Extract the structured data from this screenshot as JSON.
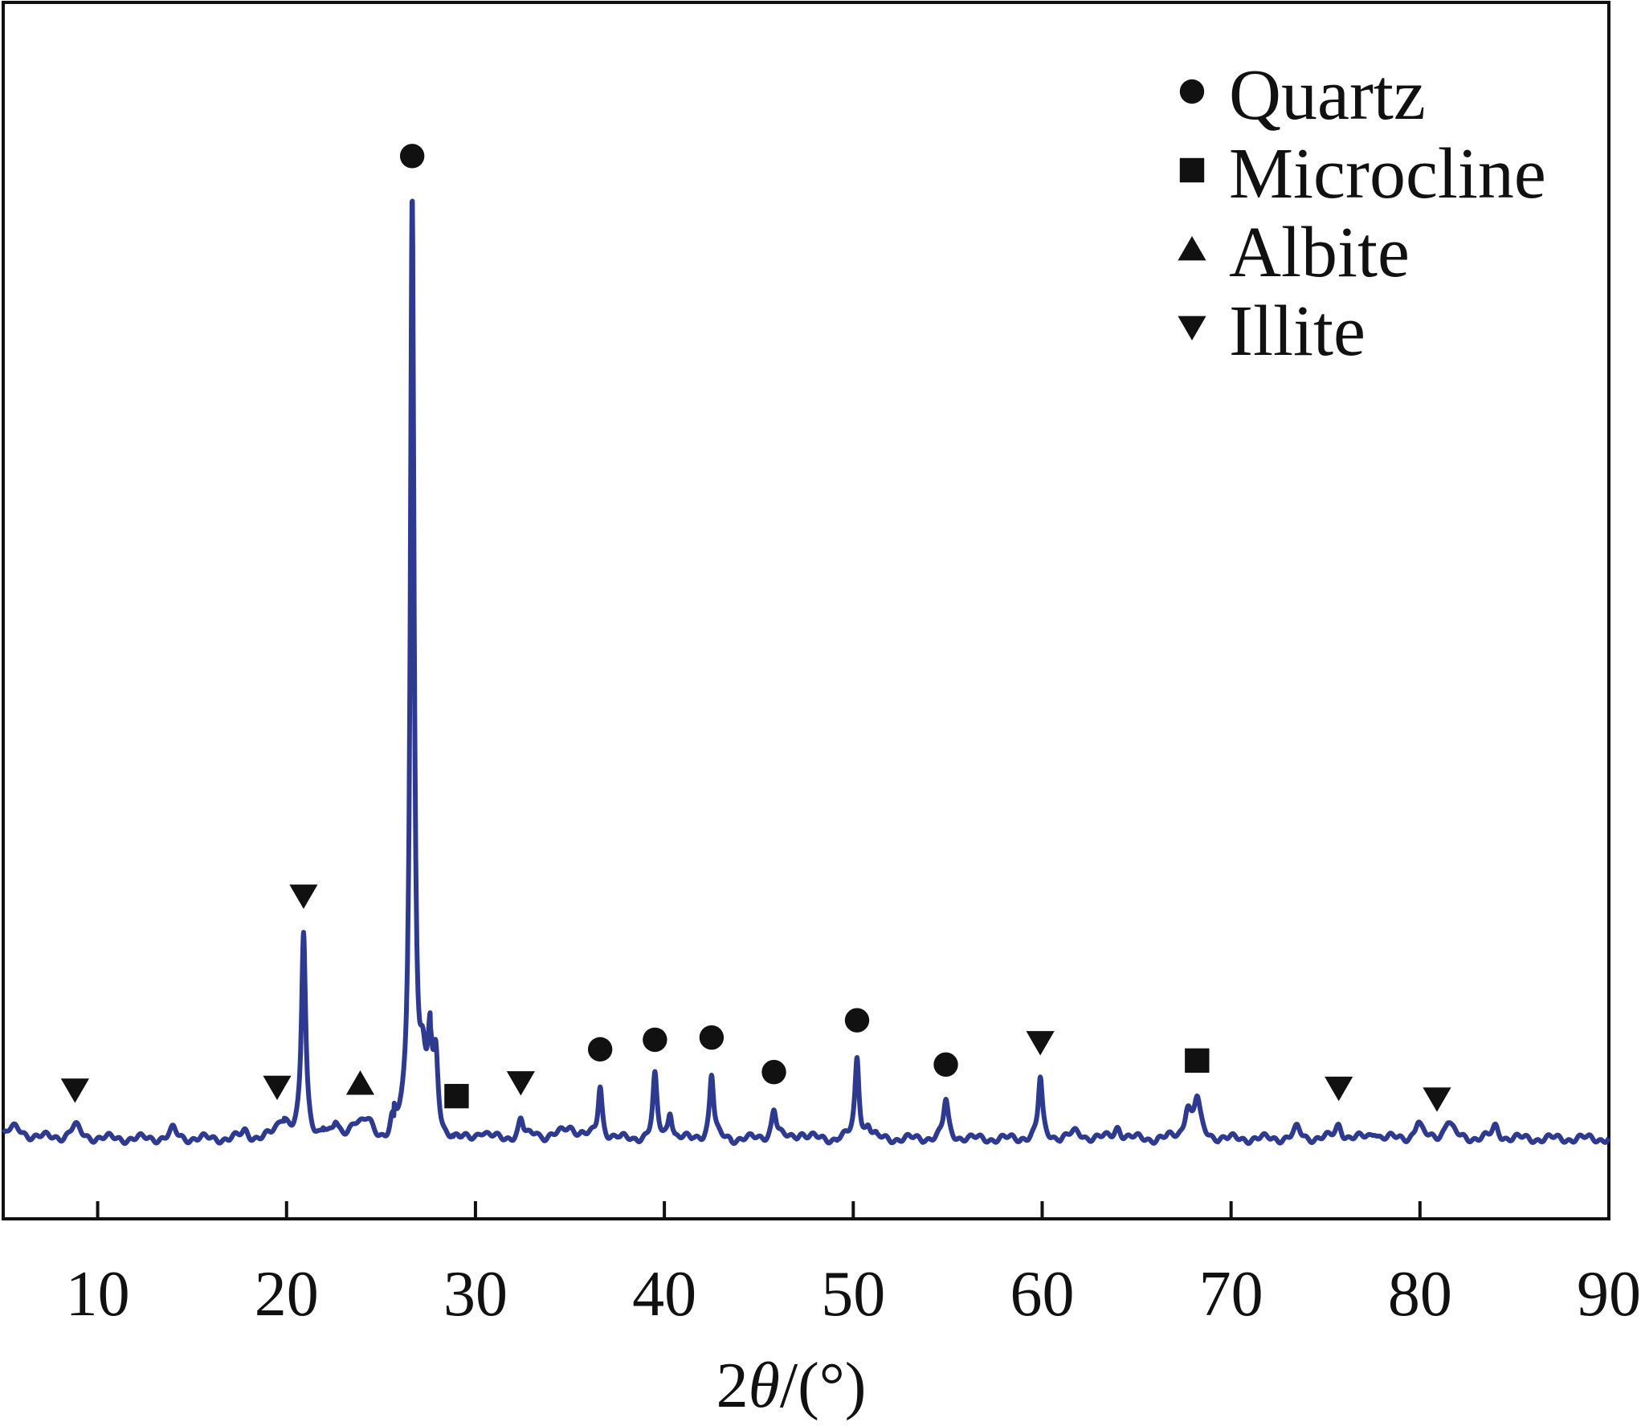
{
  "chart_data": {
    "type": "line",
    "title": "",
    "xlabel": "2θ/(°)",
    "xlabel_parts": {
      "prefix": "2",
      "symbol": "θ",
      "suffix": "/(°)"
    },
    "ylabel": "",
    "xlim": [
      5,
      90
    ],
    "ylim": [
      0,
      1000
    ],
    "xticks": [
      10,
      20,
      30,
      40,
      50,
      60,
      70,
      80,
      90
    ],
    "yticks_shown": false,
    "grid": false,
    "line_color": "#2e3a8f",
    "legend_position": "top-right",
    "legend": [
      {
        "symbol": "circle",
        "label": "Quartz"
      },
      {
        "symbol": "square",
        "label": "Microcline"
      },
      {
        "symbol": "triangle-up",
        "label": "Albite"
      },
      {
        "symbol": "triangle-down",
        "label": "Illite"
      }
    ],
    "series": [
      {
        "peaks": [
          {
            "x": 5.6,
            "h": 10,
            "w": 0.6
          },
          {
            "x": 8.8,
            "h": 12,
            "w": 0.3
          },
          {
            "x": 14.0,
            "h": 9,
            "w": 0.2
          },
          {
            "x": 17.8,
            "h": 7,
            "w": 0.2
          },
          {
            "x": 19.8,
            "h": 22,
            "w": 0.35
          },
          {
            "x": 20.9,
            "h": 205,
            "w": 0.13
          },
          {
            "x": 22.0,
            "h": 10,
            "w": 0.15
          },
          {
            "x": 22.6,
            "h": 12,
            "w": 0.15
          },
          {
            "x": 23.6,
            "h": 15,
            "w": 0.4
          },
          {
            "x": 24.3,
            "h": 15,
            "w": 0.35
          },
          {
            "x": 25.6,
            "h": 22,
            "w": 0.15
          },
          {
            "x": 26.65,
            "h": 945,
            "w": 0.12
          },
          {
            "x": 27.2,
            "h": 55,
            "w": 0.2
          },
          {
            "x": 27.6,
            "h": 85,
            "w": 0.15
          },
          {
            "x": 27.9,
            "h": 75,
            "w": 0.15
          },
          {
            "x": 30.3,
            "h": 8,
            "w": 0.3
          },
          {
            "x": 32.4,
            "h": 18,
            "w": 0.15
          },
          {
            "x": 33.2,
            "h": 6,
            "w": 0.2
          },
          {
            "x": 35.0,
            "h": 12,
            "w": 0.5
          },
          {
            "x": 36.6,
            "h": 52,
            "w": 0.13
          },
          {
            "x": 39.5,
            "h": 62,
            "w": 0.13
          },
          {
            "x": 40.3,
            "h": 28,
            "w": 0.13
          },
          {
            "x": 42.5,
            "h": 65,
            "w": 0.13
          },
          {
            "x": 45.8,
            "h": 30,
            "w": 0.15
          },
          {
            "x": 47.2,
            "h": 6,
            "w": 0.3
          },
          {
            "x": 50.2,
            "h": 82,
            "w": 0.13
          },
          {
            "x": 50.8,
            "h": 12,
            "w": 0.15
          },
          {
            "x": 54.9,
            "h": 38,
            "w": 0.15
          },
          {
            "x": 59.9,
            "h": 60,
            "w": 0.13
          },
          {
            "x": 61.8,
            "h": 6,
            "w": 0.4
          },
          {
            "x": 64.0,
            "h": 12,
            "w": 0.2
          },
          {
            "x": 67.7,
            "h": 30,
            "w": 0.2
          },
          {
            "x": 68.2,
            "h": 38,
            "w": 0.2
          },
          {
            "x": 73.5,
            "h": 10,
            "w": 0.2
          },
          {
            "x": 75.7,
            "h": 14,
            "w": 0.2
          },
          {
            "x": 77.6,
            "h": 8,
            "w": 0.2
          },
          {
            "x": 79.9,
            "h": 16,
            "w": 0.2
          },
          {
            "x": 81.5,
            "h": 18,
            "w": 0.25
          },
          {
            "x": 84.0,
            "h": 12,
            "w": 0.2
          }
        ]
      }
    ],
    "markers": [
      {
        "x": 8.8,
        "symbol": "triangle-down"
      },
      {
        "x": 19.5,
        "symbol": "triangle-down"
      },
      {
        "x": 20.9,
        "symbol": "triangle-down"
      },
      {
        "x": 23.9,
        "symbol": "triangle-up"
      },
      {
        "x": 26.65,
        "symbol": "circle"
      },
      {
        "x": 29.0,
        "symbol": "square"
      },
      {
        "x": 32.4,
        "symbol": "triangle-down"
      },
      {
        "x": 36.6,
        "symbol": "circle"
      },
      {
        "x": 39.5,
        "symbol": "circle"
      },
      {
        "x": 42.5,
        "symbol": "circle"
      },
      {
        "x": 45.8,
        "symbol": "circle"
      },
      {
        "x": 50.2,
        "symbol": "circle"
      },
      {
        "x": 54.9,
        "symbol": "circle"
      },
      {
        "x": 59.9,
        "symbol": "triangle-down"
      },
      {
        "x": 68.2,
        "symbol": "square"
      },
      {
        "x": 75.7,
        "symbol": "triangle-down"
      },
      {
        "x": 80.9,
        "symbol": "triangle-down"
      }
    ]
  }
}
